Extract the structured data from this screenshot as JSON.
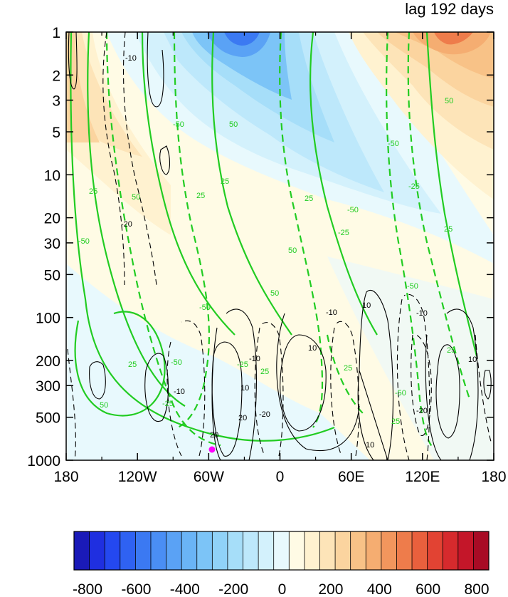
{
  "title": "lag 192 days",
  "chart_data": {
    "type": "heatmap",
    "x_ticks": [
      "180",
      "120W",
      "60W",
      "0",
      "60E",
      "120E",
      "180"
    ],
    "y_ticks": [
      "1",
      "2",
      "3",
      "5",
      "10",
      "20",
      "30",
      "50",
      "100",
      "200",
      "300",
      "500",
      "1000"
    ],
    "y_scale": "log",
    "y_inverted": true,
    "y_range": [
      1,
      1000
    ],
    "colorbar": {
      "labels": [
        "-800",
        "-600",
        "-400",
        "-200",
        "0",
        "200",
        "400",
        "600",
        "800"
      ],
      "range": [
        -800,
        800
      ],
      "colors": [
        "#1a1ab8",
        "#1f2fe0",
        "#2448f0",
        "#2f62f2",
        "#3b79f2",
        "#4a8ef4",
        "#5aa2f5",
        "#6ab4f6",
        "#7cc4f7",
        "#90d2f8",
        "#a6def9",
        "#bde8fb",
        "#d3f1fc",
        "#e8f9fd",
        "#fffbe5",
        "#fff2d0",
        "#fde4b8",
        "#fbd49f",
        "#f8c287",
        "#f5ad71",
        "#f2965d",
        "#ee7c4b",
        "#e9603d",
        "#e24333",
        "#d62a2d",
        "#c41629",
        "#a80b25"
      ]
    },
    "green_contour_labels": [
      "25",
      "50",
      "-50",
      "-25"
    ],
    "black_contour_labels": [
      "10",
      "-10",
      "20",
      "-20"
    ]
  }
}
